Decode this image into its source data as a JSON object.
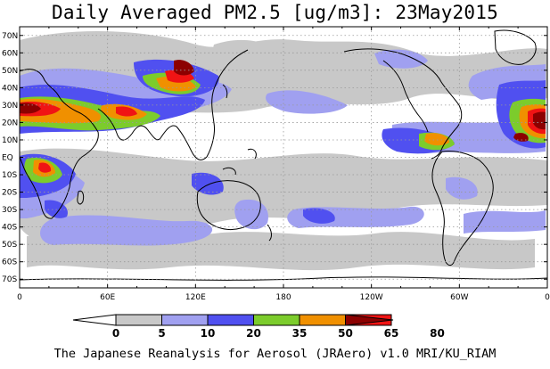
{
  "title": "Daily Averaged PM2.5 [ug/m3]: 23May2015",
  "footer": "The Japanese Reanalysis for Aerosol (JRAero) v1.0 MRI/KU_RIAM",
  "lat_ticks": [
    "70N",
    "60N",
    "50N",
    "40N",
    "30N",
    "20N",
    "10N",
    "EQ",
    "10S",
    "20S",
    "30S",
    "40S",
    "50S",
    "60S",
    "70S"
  ],
  "lon_ticks": [
    "0",
    "60E",
    "120E",
    "180",
    "120W",
    "60W",
    "0"
  ],
  "colorbar": {
    "labels": [
      "0",
      "5",
      "10",
      "20",
      "35",
      "50",
      "65",
      "80"
    ],
    "colors": [
      "#ffffff",
      "#c8c8c8",
      "#a0a0f0",
      "#5050f0",
      "#7ccc2c",
      "#f09000",
      "#f01414",
      "#8c0000"
    ]
  },
  "map_colors": {
    "land": "#ffffff",
    "coast": "#000000",
    "grid": "#999999"
  }
}
